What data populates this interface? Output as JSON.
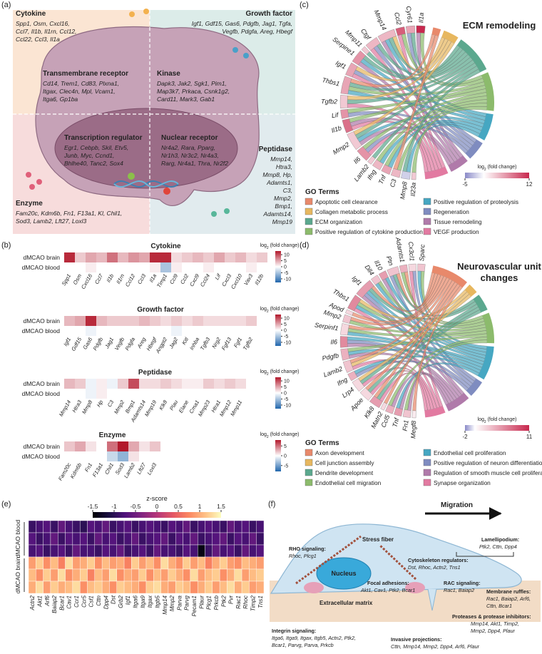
{
  "panel_labels": [
    "(a)",
    "(b)",
    "(c)",
    "(d)",
    "(e)",
    "(f)"
  ],
  "log_fc_label": {
    "base": "log",
    "sub": "2",
    "rest": " (fold change)"
  },
  "panel_a": {
    "groups": [
      {
        "title": "Cytokine",
        "lines": [
          "Spp1, Osm, Cxcl16,",
          "Ccl7, Il1b, Il1rn, Ccl12,",
          "Ccl22, Ccl3, Il1a"
        ]
      },
      {
        "title": "Growth factor",
        "lines": [
          "Igf1, Gdf15, Gas6, Pdgfb, Jag1, Tgfa,",
          "Vegfb, Pdgfa, Areg, Hbegf"
        ]
      },
      {
        "title": "Transmembrane receptor",
        "lines": [
          "Cd14, Trem1, Cd83, Plxna1,",
          "Itgax, Clec4n, Mpl, Vcam1,",
          "Itga6, Gp1ba"
        ]
      },
      {
        "title": "Kinase",
        "lines": [
          "Dapk3, Jak2, Sgk1, Pim1,",
          "Map3k7, Prkaca, Csnk1g2,",
          "Card11, Mark3, Gab1"
        ]
      },
      {
        "title": "Transcription regulator",
        "lines": [
          "Egr1, Cebpb, Skil, Etv5,",
          "Junb, Myc, Ccnd1,",
          "Bhlhe40, Tanc2, Sox4"
        ]
      },
      {
        "title": "Nuclear receptor",
        "lines": [
          "Nr4a2, Rara, Pparg,",
          "Nr1h3, Nr3c2, Nr4a3,",
          "Rarg, Nr4a1, Thra, Nr2f2"
        ]
      },
      {
        "title": "Peptidase",
        "lines": [
          "Mmp14,",
          "Htra3,",
          "Mmp8, Hp,",
          "Adamts1,",
          "C3,",
          "Mmp2,",
          "Bmp1,",
          "Adamts14,",
          "Mmp19"
        ]
      },
      {
        "title": "Enzyme",
        "lines": [
          "Fam20c, Kdm6b, Fn1, F13a1, Kl, Chil1,",
          "Sod3, Lamb2, Lft27, Loxl3"
        ]
      }
    ]
  },
  "panel_b": {
    "rows": [
      "dMCAO brain",
      "dMCAO blood"
    ],
    "heatmaps": [
      {
        "title": "Cytokine",
        "genes": [
          "Spp1",
          "Osm",
          "Cxcl16",
          "Ccl7",
          "Il1b",
          "Il1rn",
          "Ccl12",
          "Ccl3",
          "Il1a",
          "Timp1",
          "Ccl9",
          "Ccl2",
          "Cxcl9",
          "Ccl24",
          "Lif",
          "Cxcl3",
          "Cxcl10",
          "Vav3",
          "Il12b"
        ],
        "values": [
          [
            12,
            3,
            5,
            4,
            8,
            4,
            6,
            5,
            12,
            12,
            2,
            3,
            4,
            3,
            5,
            3,
            4,
            2,
            3
          ],
          [
            0,
            0,
            1,
            0,
            0,
            0,
            0,
            0,
            1,
            -5,
            1,
            0,
            0,
            1,
            0,
            0,
            0,
            1,
            0
          ]
        ],
        "lim": [
          -13,
          13
        ],
        "ticks": [
          10,
          5,
          0,
          -5,
          -10
        ]
      },
      {
        "title": "Growth factor",
        "genes": [
          "Igf1",
          "Gdf15",
          "Gas6",
          "Pdgfb",
          "Jag1",
          "Vegfb",
          "Pdgfa",
          "Areg",
          "Hbegf",
          "Angpt2",
          "Jag2",
          "Kitl",
          "Inhba",
          "Tgfb3",
          "Nrg2",
          "Fgf13",
          "Fgf1",
          "Tgfb2"
        ],
        "values": [
          [
            4,
            5,
            12,
            4,
            3,
            3,
            3,
            4,
            3,
            2,
            3,
            2,
            3,
            2,
            2,
            2,
            2,
            3
          ],
          [
            0,
            0,
            -1,
            0,
            0,
            0,
            0,
            0,
            0,
            0,
            -1,
            0,
            0,
            0,
            0,
            0,
            0,
            0
          ]
        ],
        "lim": [
          -13,
          13
        ],
        "ticks": [
          10,
          5,
          0,
          -5,
          -10
        ]
      },
      {
        "title": "Peptidase",
        "genes": [
          "Mmp14",
          "Htra3",
          "Mmp8",
          "Hp",
          "C3",
          "Mmp2",
          "Bmp1",
          "Adamts14",
          "Mmp19",
          "Klk8",
          "Plau",
          "Elane",
          "Cma1",
          "Mmp23",
          "Htra1",
          "Mmp12",
          "Mmp11"
        ],
        "values": [
          [
            4,
            3,
            -1,
            1,
            -1,
            3,
            10,
            2,
            2,
            3,
            2,
            1,
            1,
            3,
            2,
            3,
            2
          ],
          [
            0,
            0,
            -1,
            1,
            0,
            0,
            0,
            0,
            0,
            0,
            0,
            0,
            0,
            0,
            0,
            0,
            0
          ]
        ],
        "lim": [
          -13,
          13
        ],
        "ticks": [
          10,
          5,
          0,
          -5,
          -10
        ]
      },
      {
        "title": "Enzyme",
        "genes": [
          "Fam20c",
          "Kdm6b",
          "Fn1",
          "F13a1",
          "Chil1",
          "Sod3",
          "Lamb2",
          "Lft27",
          "Loxl3"
        ],
        "values": [
          [
            2,
            3,
            1,
            0,
            5,
            8,
            3,
            1,
            2
          ],
          [
            0,
            0,
            0,
            0,
            -2,
            -4,
            1,
            0,
            0
          ]
        ],
        "lim": [
          -8,
          8
        ],
        "ticks": [
          5,
          0,
          -5
        ]
      }
    ]
  },
  "panel_c": {
    "title": [
      "ECM remodeling"
    ],
    "genes": [
      "Il1a",
      "Cyr61",
      "Ccl2",
      "Mmp14",
      "Ctgf",
      "Mmp11",
      "Serpine1",
      "Igf1",
      "Thbs1",
      "Tgfb2",
      "Lif",
      "Il1b",
      "Mmp2",
      "Il6",
      "Lamb2",
      "Ifng",
      "Tnf",
      "C3",
      "Mmp8",
      "Il23a"
    ],
    "fold_change": [
      12,
      5,
      9,
      4,
      4,
      3,
      6,
      5,
      5,
      3,
      6,
      8,
      3,
      6,
      3,
      4,
      5,
      4,
      -2,
      3
    ],
    "links": [
      [
        3,
        6
      ],
      [
        2,
        5
      ],
      [
        3,
        7
      ],
      [
        1,
        2,
        4,
        6
      ],
      [
        2,
        5,
        7
      ],
      [
        2
      ],
      [
        2,
        4,
        6
      ],
      [
        1,
        5,
        7
      ],
      [
        0,
        2,
        3,
        4
      ],
      [
        1,
        2,
        7
      ],
      [
        3,
        5
      ],
      [
        3,
        6,
        7
      ],
      [
        1,
        2,
        4,
        6
      ],
      [
        3,
        5,
        7
      ],
      [
        2
      ],
      [
        3,
        4
      ],
      [
        3,
        4
      ],
      [
        0,
        3
      ],
      [
        2,
        4
      ],
      [
        3
      ]
    ],
    "colorbar": {
      "lim": [
        -5,
        12
      ],
      "ticks": [
        -5,
        12
      ]
    },
    "go_heading": "GO Terms",
    "terms": [
      {
        "name": "Apoptotic cell clearance",
        "color": "#e8896b"
      },
      {
        "name": "Collagen metabolic process",
        "color": "#e7b75f"
      },
      {
        "name": "ECM organization",
        "color": "#5ba88e"
      },
      {
        "name": "Positive regulation of cytokine production",
        "color": "#8cbb6c"
      },
      {
        "name": "Positive regulation of proteolysis",
        "color": "#46a7c2"
      },
      {
        "name": "Regeneration",
        "color": "#7f8cc0"
      },
      {
        "name": "Tissue remodeling",
        "color": "#b07aaa"
      },
      {
        "name": "VEGF production",
        "color": "#e27aa1"
      }
    ]
  },
  "panel_d": {
    "title": [
      "Neurovascular unit",
      "changes"
    ],
    "genes": [
      "Sparc",
      "Cx3cl1",
      "Adamts1",
      "Ptn",
      "Il10",
      "Dll4",
      "Igf1",
      "Thbs1",
      "Apod",
      "Mmp2",
      "Serpinf1",
      "Il6",
      "Pdgfb",
      "Lamb2",
      "Ifng",
      "Lrp4",
      "Apoe",
      "Klk8",
      "Matn2",
      "Ccl5",
      "Tnf",
      "Fn1",
      "Megf8"
    ],
    "fold_change": [
      3,
      2,
      4,
      3,
      5,
      3,
      5,
      6,
      2,
      3,
      2,
      6,
      4,
      3,
      4,
      2,
      2,
      5,
      2,
      4,
      5,
      3,
      1
    ],
    "links": [
      [
        3,
        4
      ],
      [
        5,
        7
      ],
      [
        0,
        3
      ],
      [
        0,
        2,
        5
      ],
      [
        4,
        6
      ],
      [
        3,
        4
      ],
      [
        0,
        2,
        4,
        5,
        6
      ],
      [
        1,
        3,
        4,
        7
      ],
      [
        0
      ],
      [
        0,
        3
      ],
      [
        0,
        3,
        4
      ],
      [
        4,
        5,
        6
      ],
      [
        3,
        4,
        6
      ],
      [
        0,
        1,
        7
      ],
      [
        4,
        5
      ],
      [
        1,
        2,
        7
      ],
      [
        0,
        2,
        7
      ],
      [
        0,
        2,
        7
      ],
      [
        0
      ],
      [
        3,
        6
      ],
      [
        4,
        6
      ],
      [
        3,
        6
      ],
      [
        0
      ]
    ],
    "colorbar": {
      "lim": [
        -2,
        11
      ],
      "ticks": [
        -2,
        11
      ]
    },
    "go_heading": "GO Terms",
    "terms": [
      {
        "name": "Axon development",
        "color": "#e8896b"
      },
      {
        "name": "Cell junction assembly",
        "color": "#e7b75f"
      },
      {
        "name": "Dendrite development",
        "color": "#5ba88e"
      },
      {
        "name": "Endothelial cell migration",
        "color": "#8cbb6c"
      },
      {
        "name": "Endothelial cell proliferation",
        "color": "#46a7c2"
      },
      {
        "name": "Positive regulation of neuron differentiation",
        "color": "#7f8cc0"
      },
      {
        "name": "Regulation of smooth muscle cell proliferation",
        "color": "#b07aaa"
      },
      {
        "name": "Synapse organization",
        "color": "#e27aa1"
      }
    ]
  },
  "panel_e": {
    "colorbar_title": "z-score",
    "lim": [
      -1.5,
      1.5
    ],
    "ticks": [
      -1.5,
      -1,
      -0.5,
      0,
      0.5,
      1,
      1.5
    ],
    "row_groups": [
      "dMCAO blood",
      "dMCAO brain"
    ],
    "genes": [
      "Actn2",
      "Akt1",
      "Arf6",
      "Baiap2",
      "Bcar1",
      "Cav1",
      "Ccr1",
      "Ccr5",
      "Csf1",
      "Cttn",
      "Dpp4",
      "Dst",
      "Grb2",
      "Igf1",
      "Itga6",
      "Itga9",
      "Itgax",
      "Itgb5",
      "Mmp14",
      "Mmp2",
      "Parva",
      "Parvg",
      "Pecam1",
      "Plaur",
      "Plcg1",
      "Prkcb",
      "Ptk2",
      "Pvr",
      "Rac1",
      "Rhoc",
      "Timp2",
      "Tns1"
    ],
    "values": [
      [
        -0.9,
        -0.8,
        -0.7,
        -0.9,
        -0.6,
        -0.8,
        -0.9,
        -1.0,
        -0.7,
        -0.8,
        -0.6,
        -0.9,
        -0.8,
        -0.7,
        -0.9,
        -0.8,
        -0.7,
        -0.8,
        -0.9,
        -0.7,
        -0.8,
        -0.6,
        -0.9,
        -0.8,
        -0.7,
        -0.8,
        -0.9,
        -0.6,
        -0.8,
        -0.7,
        -0.9,
        -0.8
      ],
      [
        -0.7,
        -0.9,
        -0.8,
        -0.6,
        -0.9,
        -0.7,
        -0.8,
        -0.7,
        -0.9,
        -0.6,
        -0.8,
        -0.7,
        -0.9,
        -0.8,
        -0.6,
        -0.9,
        -0.8,
        -0.7,
        -0.6,
        -0.9,
        -0.7,
        -0.8,
        -0.6,
        -0.9,
        -0.8,
        -0.7,
        -0.6,
        -0.9,
        -0.7,
        -0.8,
        -0.6,
        -0.9
      ],
      [
        -0.8,
        -0.7,
        -0.9,
        -0.8,
        -0.7,
        -0.9,
        -0.6,
        -0.8,
        -0.8,
        -0.9,
        -0.7,
        -0.8,
        -0.6,
        -0.9,
        -0.8,
        -0.7,
        -0.9,
        -0.6,
        -0.8,
        -0.8,
        -0.9,
        -0.7,
        -0.8,
        -1.4,
        -0.9,
        -0.6,
        -0.8,
        -0.7,
        -0.9,
        -0.6,
        -0.8,
        -0.7
      ],
      [
        0.9,
        1.2,
        0.8,
        1.1,
        0.7,
        1.3,
        0.9,
        1.0,
        1.2,
        0.8,
        1.1,
        0.9,
        1.0,
        0.7,
        1.2,
        0.9,
        1.1,
        0.8,
        1.3,
        1.0,
        0.8,
        1.2,
        0.9,
        1.1,
        0.7,
        1.0,
        1.2,
        0.9,
        0.8,
        1.1,
        1.0,
        0.9
      ],
      [
        1.1,
        0.8,
        1.2,
        0.9,
        1.3,
        0.8,
        1.0,
        1.2,
        0.7,
        1.1,
        0.9,
        1.3,
        0.8,
        1.0,
        0.9,
        1.2,
        0.8,
        1.1,
        0.9,
        1.2,
        1.0,
        0.8,
        1.3,
        0.9,
        1.1,
        1.2,
        0.8,
        1.0,
        1.3,
        0.9,
        1.1,
        1.2
      ],
      [
        1.0,
        1.3,
        0.9,
        1.2,
        1.0,
        1.1,
        1.3,
        0.8,
        1.1,
        1.2,
        1.0,
        0.8,
        1.2,
        1.1,
        1.0,
        0.8,
        1.2,
        1.3,
        1.0,
        0.9,
        1.2,
        1.1,
        0.8,
        1.0,
        1.2,
        0.9,
        1.1,
        1.3,
        1.0,
        1.2,
        0.9,
        1.0
      ]
    ]
  },
  "panel_f": {
    "items": [
      "Migration",
      "Stress fiber",
      "Nucleus",
      "RHO signaling:",
      "Rhoc, Plcg1",
      "Cytoskeleton regulators:",
      "Dst, Rhoc, Actn2, Tns1",
      "Focal adhesions:",
      "Akt1, Cav1, Ptk2, Bcar1",
      "Lamellipodium:",
      "Ptk2, Cttn, Dpp4",
      "RAC signaling:",
      "Rac1, Baiap2",
      "Membrane ruffles:",
      "Rac1, Baiap2, Arf6,",
      "Cttn, Bcar1",
      "Extracellular matrix",
      "Proteases & protease inhibitors:",
      "Mmp14, Akt1, Timp2,",
      "Mmp2, Dpp4, Plaur",
      "Integrin signaling:",
      "Itga6, Itga9, Itgax, Itgb5, Actn2, Ptk2,",
      "Bcar1, Parvg, Parva, Prkcb",
      "Invasive projections:",
      "Cttn, Mmp14, Mmp2, Dpp4, Arf6, Plaur"
    ]
  }
}
